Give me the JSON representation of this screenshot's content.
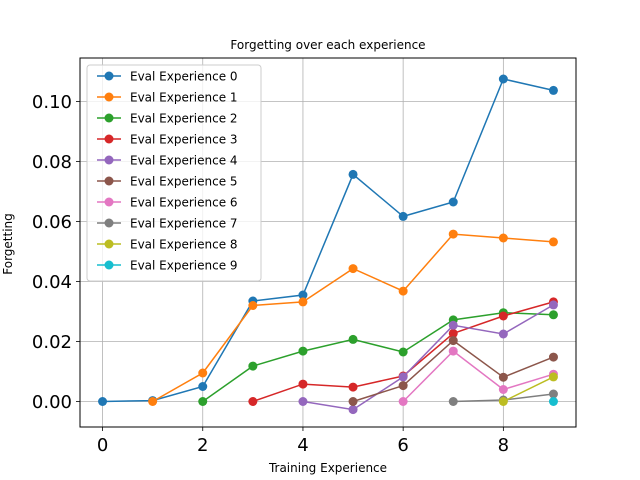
{
  "chart_data": {
    "type": "line",
    "title": "Forgetting over each experience",
    "xlabel": "Training Experience",
    "ylabel": "Forgetting",
    "xlim": [
      -0.45,
      9.45
    ],
    "ylim": [
      -0.0085,
      0.1145
    ],
    "x": [
      0,
      1,
      2,
      3,
      4,
      5,
      6,
      7,
      8,
      9
    ],
    "xticks": [
      0,
      2,
      4,
      6,
      8
    ],
    "xtick_labels": [
      "0",
      "2",
      "4",
      "6",
      "8"
    ],
    "yticks": [
      0.0,
      0.02,
      0.04,
      0.06,
      0.08,
      0.1
    ],
    "ytick_labels": [
      "0.00",
      "0.02",
      "0.04",
      "0.06",
      "0.08",
      "0.10"
    ],
    "grid": true,
    "legend_position": "upper-left",
    "series": [
      {
        "name": "Eval Experience 0",
        "color": "#1f77b4",
        "x": [
          0,
          1,
          2,
          3,
          4,
          5,
          6,
          7,
          8,
          9
        ],
        "values": [
          0.0,
          0.0003,
          0.005,
          0.0335,
          0.0355,
          0.0757,
          0.0617,
          0.0665,
          0.1075,
          0.1037
        ]
      },
      {
        "name": "Eval Experience 1",
        "color": "#ff7f0e",
        "x": [
          1,
          2,
          3,
          4,
          5,
          6,
          7,
          8,
          9
        ],
        "values": [
          0.0,
          0.0095,
          0.032,
          0.0332,
          0.0443,
          0.0368,
          0.0558,
          0.0545,
          0.0532
        ]
      },
      {
        "name": "Eval Experience 2",
        "color": "#2ca02c",
        "x": [
          2,
          3,
          4,
          5,
          6,
          7,
          8,
          9
        ],
        "values": [
          0.0,
          0.0118,
          0.0168,
          0.0207,
          0.0165,
          0.0272,
          0.0296,
          0.0289
        ]
      },
      {
        "name": "Eval Experience 3",
        "color": "#d62728",
        "x": [
          3,
          4,
          5,
          6,
          7,
          8,
          9
        ],
        "values": [
          0.0,
          0.0058,
          0.0048,
          0.0085,
          0.0227,
          0.0285,
          0.0332
        ]
      },
      {
        "name": "Eval Experience 4",
        "color": "#9467bd",
        "x": [
          4,
          5,
          6,
          7,
          8,
          9
        ],
        "values": [
          0.0,
          -0.0027,
          0.0082,
          0.0254,
          0.0225,
          0.0322
        ]
      },
      {
        "name": "Eval Experience 5",
        "color": "#8c564b",
        "x": [
          5,
          6,
          7,
          8,
          9
        ],
        "values": [
          0.0,
          0.0053,
          0.0203,
          0.0081,
          0.0148
        ]
      },
      {
        "name": "Eval Experience 6",
        "color": "#e377c2",
        "x": [
          6,
          7,
          8,
          9
        ],
        "values": [
          0.0,
          0.0168,
          0.004,
          0.0091
        ]
      },
      {
        "name": "Eval Experience 7",
        "color": "#7f7f7f",
        "x": [
          7,
          8,
          9
        ],
        "values": [
          0.0,
          0.0005,
          0.0025
        ]
      },
      {
        "name": "Eval Experience 8",
        "color": "#bcbd22",
        "x": [
          8,
          9
        ],
        "values": [
          0.0,
          0.0082
        ]
      },
      {
        "name": "Eval Experience 9",
        "color": "#17becf",
        "x": [
          9
        ],
        "values": [
          0.0
        ]
      }
    ]
  }
}
